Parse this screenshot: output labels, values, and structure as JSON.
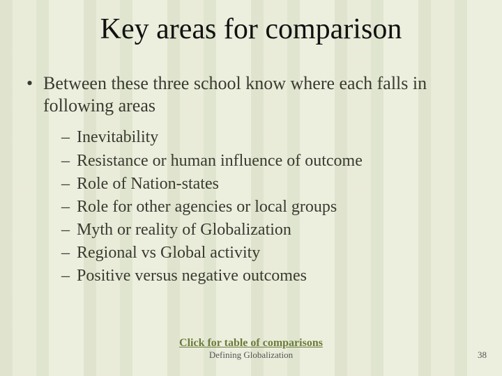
{
  "title": "Key areas for comparison",
  "main_bullet": "Between these three school know where each falls in following areas",
  "sub_bullets": [
    "Inevitability",
    "Resistance or human influence of outcome",
    "Role of Nation-states",
    "Role for other agencies or local groups",
    "Myth or reality of Globalization",
    "Regional vs Global activity",
    "Positive versus negative outcomes"
  ],
  "link_text": "Click for table of comparisons",
  "footer_text": "Defining Globalization",
  "page_number": "38",
  "colors": {
    "title": "#111111",
    "body_text": "#3a3a30",
    "link": "#6b7a3a",
    "footer": "#555555",
    "background_base": "#eef0e0"
  },
  "fonts": {
    "family": "Book Antiqua / Palatino",
    "title_size_pt": 32,
    "body_size_pt": 20,
    "sub_size_pt": 18,
    "footer_size_pt": 10
  }
}
